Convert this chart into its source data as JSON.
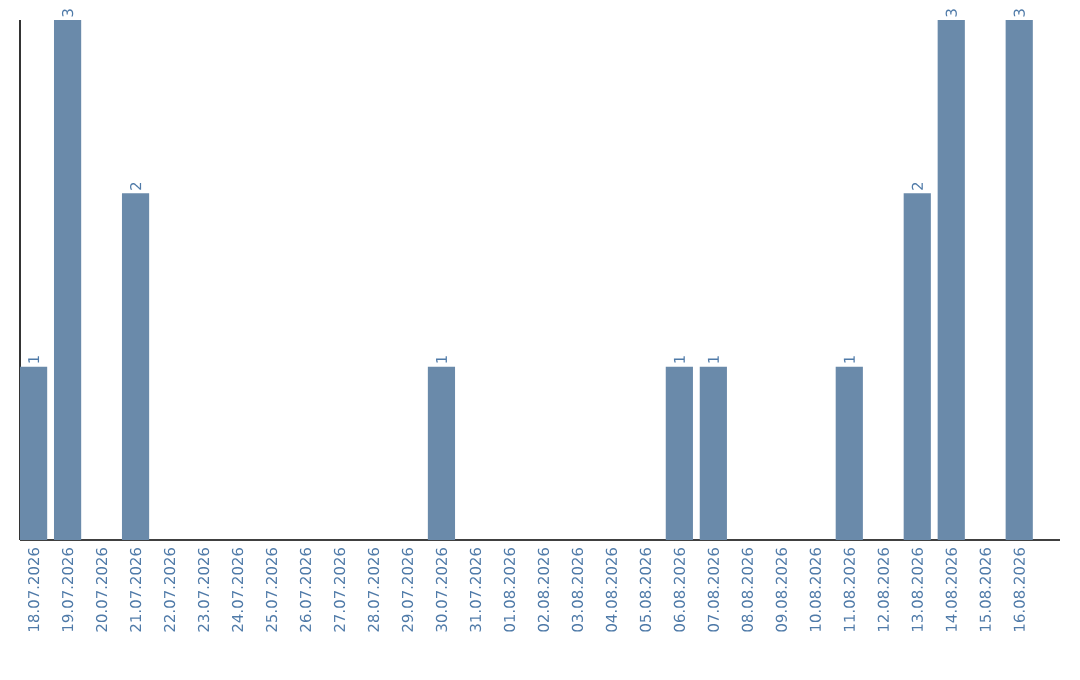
{
  "chart_data": {
    "type": "bar",
    "categories": [
      "18.07.2026",
      "19.07.2026",
      "20.07.2026",
      "21.07.2026",
      "22.07.2026",
      "23.07.2026",
      "24.07.2026",
      "25.07.2026",
      "26.07.2026",
      "27.07.2026",
      "28.07.2026",
      "29.07.2026",
      "30.07.2026",
      "31.07.2026",
      "01.08.2026",
      "02.08.2026",
      "03.08.2026",
      "04.08.2026",
      "05.08.2026",
      "06.08.2026",
      "07.08.2026",
      "08.08.2026",
      "09.08.2026",
      "10.08.2026",
      "11.08.2026",
      "12.08.2026",
      "13.08.2026",
      "14.08.2026",
      "15.08.2026",
      "16.08.2026"
    ],
    "values": [
      1,
      3,
      null,
      2,
      null,
      null,
      null,
      null,
      null,
      null,
      null,
      null,
      1,
      null,
      null,
      null,
      null,
      null,
      null,
      1,
      1,
      null,
      null,
      null,
      1,
      null,
      2,
      3,
      null,
      3
    ],
    "color": "#6a8aaa",
    "ylim": [
      0,
      3
    ],
    "data_labels": true
  }
}
